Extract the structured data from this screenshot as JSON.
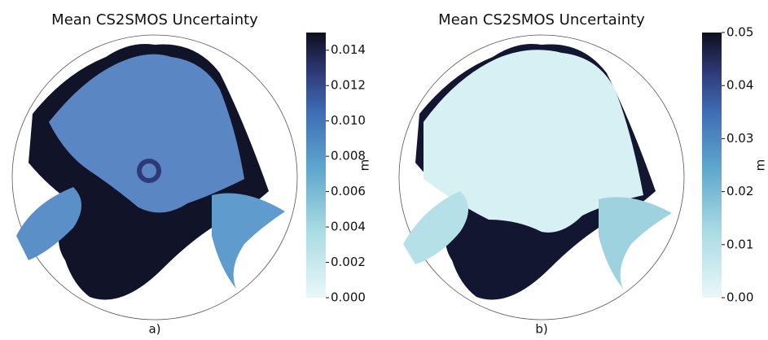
{
  "chart_data": [
    {
      "type": "map",
      "title": "Mean CS2SMOS Uncertainty",
      "caption": "a)",
      "colorbar": {
        "label": "m",
        "lim": [
          0,
          0.015
        ],
        "ticks": [
          {
            "value": 0,
            "label": "0.000"
          },
          0.002,
          0.004,
          0.006,
          0.008,
          {
            "value": 0.01,
            "label": "0.010"
          },
          0.012,
          0.014
        ]
      }
    },
    {
      "type": "map",
      "title": "Mean CS2SMOS Uncertainty",
      "caption": "b)",
      "colorbar": {
        "label": "m",
        "lim": [
          0,
          0.05
        ],
        "ticks": [
          {
            "value": 0,
            "label": "0.00"
          },
          0.01,
          0.02,
          0.03,
          0.04,
          0.05
        ]
      }
    }
  ]
}
